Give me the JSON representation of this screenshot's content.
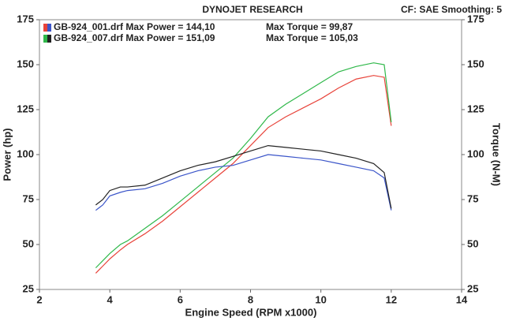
{
  "chart_data": {
    "type": "line",
    "title": "DYNOJET RESEARCH",
    "subtitle": "CF: SAE  Smoothing: 5",
    "xlabel": "Engine Speed (RPM x1000)",
    "ylabel": "Power (hp)",
    "y2label": "Torque (N-M)",
    "legend": [
      {
        "file": "GB-924_001.drf Max Power = 144,10",
        "torque": "Max Torque = 99,87",
        "colors": [
          "#e8433a",
          "#3b55c9"
        ]
      },
      {
        "file": "GB-924_007.drf Max Power = 151,09",
        "torque": "Max Torque = 105,03",
        "colors": [
          "#2fb84a",
          "#222222"
        ]
      }
    ],
    "x": [
      3.6,
      3.8,
      4,
      4.3,
      4.5,
      5,
      5.5,
      6,
      6.5,
      7,
      7.5,
      8,
      8.5,
      9,
      9.5,
      10,
      10.5,
      11,
      11.5,
      11.8,
      12
    ],
    "series": [
      {
        "color": "#e8433a",
        "values": [
          34,
          38,
          42,
          47,
          50,
          56,
          63,
          71,
          79,
          87,
          95,
          105,
          115,
          121,
          126,
          131,
          137,
          142,
          144,
          143,
          116
        ]
      },
      {
        "color": "#2fb84a",
        "values": [
          37,
          41,
          45,
          50,
          52,
          59,
          66,
          74,
          82,
          90,
          98,
          109,
          121,
          128,
          134,
          140,
          146,
          149,
          151,
          150,
          118
        ]
      },
      {
        "color": "#3b55c9",
        "axis": "y2",
        "values": [
          69,
          72,
          77,
          79,
          80,
          81,
          84,
          88,
          91,
          93,
          94,
          97,
          100,
          99,
          98,
          97,
          95,
          93,
          91,
          87,
          69
        ]
      },
      {
        "color": "#222222",
        "axis": "y2",
        "values": [
          72,
          75,
          80,
          82,
          82,
          83,
          87,
          91,
          94,
          96,
          99,
          102,
          105,
          104,
          103,
          102,
          100,
          98,
          95,
          90,
          70
        ]
      }
    ],
    "xlim": [
      2,
      14
    ],
    "xticks": [
      2,
      4,
      6,
      8,
      10,
      12,
      14
    ],
    "ylim": [
      25,
      175
    ],
    "yticks": [
      25,
      50,
      75,
      100,
      125,
      150,
      175
    ],
    "y2lim": [
      25,
      175
    ],
    "y2ticks": [
      25,
      50,
      75,
      100,
      125,
      150,
      175
    ],
    "grid": false
  }
}
